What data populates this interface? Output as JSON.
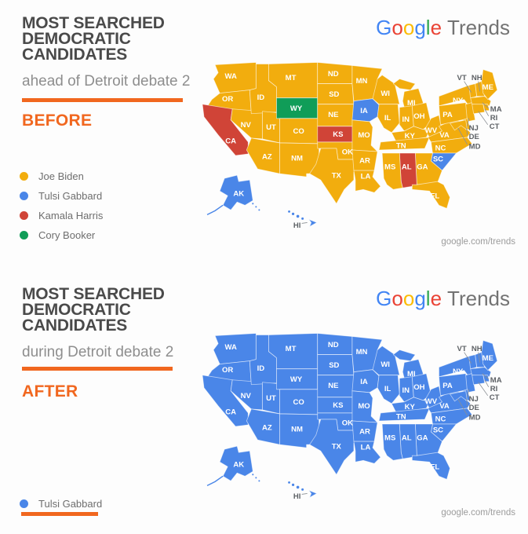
{
  "accent_color": "#F1671F",
  "logo": {
    "letters": [
      {
        "ch": "G",
        "color": "#4285F4"
      },
      {
        "ch": "o",
        "color": "#EA4335"
      },
      {
        "ch": "o",
        "color": "#FBBC05"
      },
      {
        "ch": "g",
        "color": "#4285F4"
      },
      {
        "ch": "l",
        "color": "#34A853"
      },
      {
        "ch": "e",
        "color": "#EA4335"
      }
    ],
    "suffix": "Trends",
    "suffix_color": "#737373"
  },
  "candidates": {
    "biden": {
      "name": "Joe Biden",
      "color": "#F2AD0E"
    },
    "gabbard": {
      "name": "Tulsi Gabbard",
      "color": "#4A86E8"
    },
    "harris": {
      "name": "Kamala Harris",
      "color": "#D04437"
    },
    "booker": {
      "name": "Cory Booker",
      "color": "#109D58"
    }
  },
  "panels": [
    {
      "title_lines": [
        "MOST SEARCHED",
        "DEMOCRATIC",
        "CANDIDATES"
      ],
      "subtitle": "ahead of Detroit debate 2",
      "phase_label": "BEFORE",
      "legend": [
        "biden",
        "gabbard",
        "harris",
        "booker"
      ],
      "legend_underline": false,
      "attribution": "google.com/trends",
      "map_mode": "before"
    },
    {
      "title_lines": [
        "MOST SEARCHED",
        "DEMOCRATIC",
        "CANDIDATES"
      ],
      "subtitle": "during Detroit debate 2",
      "phase_label": "AFTER",
      "legend": [
        "gabbard"
      ],
      "legend_underline": true,
      "attribution": "google.com/trends",
      "map_mode": "after"
    }
  ],
  "chart_data": [
    {
      "type": "heatmap",
      "title": "MOST SEARCHED DEMOCRATIC CANDIDATES ahead of Detroit debate 2 (BEFORE)",
      "legend_entries": [
        "Joe Biden",
        "Tulsi Gabbard",
        "Kamala Harris",
        "Cory Booker"
      ],
      "notes": "US choropleth; winner of search interest per state"
    },
    {
      "type": "heatmap",
      "title": "MOST SEARCHED DEMOCRATIC CANDIDATES during Detroit debate 2 (AFTER)",
      "legend_entries": [
        "Tulsi Gabbard"
      ],
      "notes": "US choropleth; Tulsi Gabbard leads in all 50 states"
    }
  ],
  "states": [
    {
      "abbr": "WA",
      "before": "biden",
      "after": "gabbard"
    },
    {
      "abbr": "OR",
      "before": "biden",
      "after": "gabbard"
    },
    {
      "abbr": "CA",
      "before": "harris",
      "after": "gabbard"
    },
    {
      "abbr": "NV",
      "before": "biden",
      "after": "gabbard"
    },
    {
      "abbr": "ID",
      "before": "biden",
      "after": "gabbard"
    },
    {
      "abbr": "UT",
      "before": "biden",
      "after": "gabbard"
    },
    {
      "abbr": "AZ",
      "before": "biden",
      "after": "gabbard"
    },
    {
      "abbr": "MT",
      "before": "biden",
      "after": "gabbard"
    },
    {
      "abbr": "WY",
      "before": "booker",
      "after": "gabbard"
    },
    {
      "abbr": "CO",
      "before": "biden",
      "after": "gabbard"
    },
    {
      "abbr": "NM",
      "before": "biden",
      "after": "gabbard"
    },
    {
      "abbr": "ND",
      "before": "biden",
      "after": "gabbard"
    },
    {
      "abbr": "SD",
      "before": "biden",
      "after": "gabbard"
    },
    {
      "abbr": "NE",
      "before": "biden",
      "after": "gabbard"
    },
    {
      "abbr": "KS",
      "before": "harris",
      "after": "gabbard"
    },
    {
      "abbr": "OK",
      "before": "biden",
      "after": "gabbard"
    },
    {
      "abbr": "TX",
      "before": "biden",
      "after": "gabbard"
    },
    {
      "abbr": "MN",
      "before": "biden",
      "after": "gabbard"
    },
    {
      "abbr": "IA",
      "before": "gabbard",
      "after": "gabbard"
    },
    {
      "abbr": "MO",
      "before": "biden",
      "after": "gabbard"
    },
    {
      "abbr": "AR",
      "before": "biden",
      "after": "gabbard"
    },
    {
      "abbr": "LA",
      "before": "biden",
      "after": "gabbard"
    },
    {
      "abbr": "WI",
      "before": "biden",
      "after": "gabbard"
    },
    {
      "abbr": "IL",
      "before": "biden",
      "after": "gabbard"
    },
    {
      "abbr": "MI",
      "before": "biden",
      "after": "gabbard"
    },
    {
      "abbr": "IN",
      "before": "biden",
      "after": "gabbard"
    },
    {
      "abbr": "OH",
      "before": "biden",
      "after": "gabbard"
    },
    {
      "abbr": "KY",
      "before": "biden",
      "after": "gabbard"
    },
    {
      "abbr": "TN",
      "before": "biden",
      "after": "gabbard"
    },
    {
      "abbr": "WV",
      "before": "biden",
      "after": "gabbard"
    },
    {
      "abbr": "VA",
      "before": "biden",
      "after": "gabbard"
    },
    {
      "abbr": "NC",
      "before": "biden",
      "after": "gabbard"
    },
    {
      "abbr": "SC",
      "before": "gabbard",
      "after": "gabbard"
    },
    {
      "abbr": "GA",
      "before": "biden",
      "after": "gabbard"
    },
    {
      "abbr": "AL",
      "before": "harris",
      "after": "gabbard"
    },
    {
      "abbr": "MS",
      "before": "biden",
      "after": "gabbard"
    },
    {
      "abbr": "FL",
      "before": "biden",
      "after": "gabbard"
    },
    {
      "abbr": "PA",
      "before": "biden",
      "after": "gabbard"
    },
    {
      "abbr": "NY",
      "before": "biden",
      "after": "gabbard"
    },
    {
      "abbr": "NJ",
      "before": "biden",
      "after": "gabbard"
    },
    {
      "abbr": "DE",
      "before": "biden",
      "after": "gabbard"
    },
    {
      "abbr": "MD",
      "before": "biden",
      "after": "gabbard"
    },
    {
      "abbr": "VT",
      "before": "biden",
      "after": "gabbard"
    },
    {
      "abbr": "NH",
      "before": "biden",
      "after": "gabbard"
    },
    {
      "abbr": "MA",
      "before": "biden",
      "after": "gabbard"
    },
    {
      "abbr": "RI",
      "before": "biden",
      "after": "gabbard"
    },
    {
      "abbr": "CT",
      "before": "biden",
      "after": "gabbard"
    },
    {
      "abbr": "ME",
      "before": "biden",
      "after": "gabbard"
    },
    {
      "abbr": "AK",
      "before": "gabbard",
      "after": "gabbard"
    },
    {
      "abbr": "HI",
      "before": "gabbard",
      "after": "gabbard"
    }
  ]
}
